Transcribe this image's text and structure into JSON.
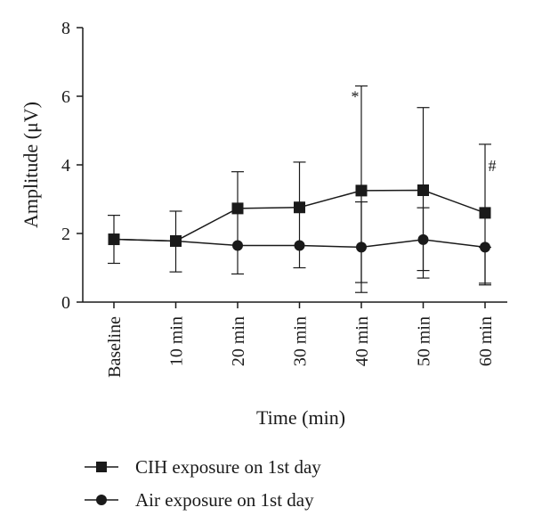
{
  "chart_data": {
    "type": "line",
    "xlabel": "Time (min)",
    "ylabel": "Amplitude (μV)",
    "categories": [
      "Baseline",
      "10 min",
      "20 min",
      "30 min",
      "40 min",
      "50 min",
      "60 min"
    ],
    "ylim": [
      0,
      8
    ],
    "yticks": [
      "0",
      "2",
      "4",
      "6",
      "8"
    ],
    "grid": false,
    "legend_position": "bottom-left",
    "series": [
      {
        "name": "CIH exposure on 1st day",
        "marker": "square",
        "values": [
          1.83,
          1.78,
          2.73,
          2.76,
          3.25,
          3.26,
          2.6
        ],
        "error_upper": [
          2.53,
          2.65,
          3.8,
          4.08,
          6.3,
          5.67,
          4.6
        ],
        "error_lower": [
          1.13,
          0.88,
          0.82,
          1.0,
          0.28,
          0.7,
          0.5
        ]
      },
      {
        "name": "Air exposure on 1st day",
        "marker": "circle",
        "values": [
          1.83,
          1.78,
          1.65,
          1.65,
          1.6,
          1.82,
          1.6
        ],
        "error_upper": [
          1.83,
          1.78,
          1.65,
          1.65,
          2.92,
          2.75,
          1.6
        ],
        "error_lower": [
          1.83,
          1.78,
          1.65,
          1.65,
          0.57,
          0.92,
          0.55
        ]
      }
    ],
    "annotations": [
      {
        "text": "*",
        "category": "40 min"
      },
      {
        "text": "#",
        "category": "60 min"
      }
    ]
  },
  "colors": {
    "line": "#1a1a1a",
    "background": "#ffffff"
  }
}
